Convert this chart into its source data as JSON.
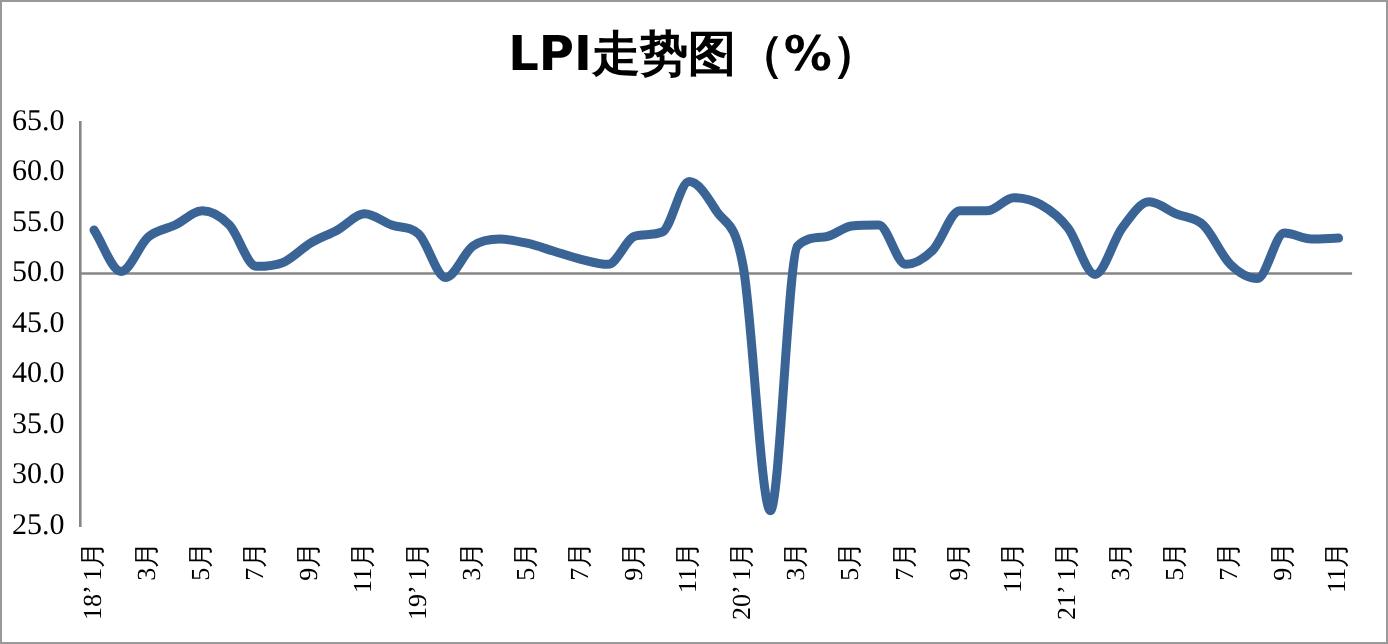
{
  "chart_data": {
    "type": "line",
    "title": "LPI走势图（%）",
    "categories": [
      "18’ 1月",
      null,
      "3月",
      null,
      "5月",
      null,
      "7月",
      null,
      "9月",
      null,
      "11月",
      null,
      "19’ 1月",
      null,
      "3月",
      null,
      "5月",
      null,
      "7月",
      null,
      "9月",
      null,
      "11月",
      null,
      "20’ 1月",
      null,
      "3月",
      null,
      "5月",
      null,
      "7月",
      null,
      "9月",
      null,
      "11月",
      null,
      "21’ 1月",
      null,
      "3月",
      null,
      "5月",
      null,
      "7月",
      null,
      "9月",
      null,
      "11月"
    ],
    "series": [
      {
        "color": "#3a6496",
        "values": [
          54.3,
          50.2,
          53.6,
          54.8,
          56.2,
          54.8,
          50.7,
          51.1,
          53.0,
          54.3,
          55.9,
          54.8,
          53.9,
          49.6,
          52.7,
          53.4,
          53.0,
          52.2,
          51.4,
          50.9,
          53.7,
          54.1,
          59.1,
          56.2,
          50.6,
          26.5,
          52.7,
          53.6,
          54.7,
          54.8,
          50.9,
          52.3,
          56.2,
          56.2,
          57.5,
          56.8,
          54.5,
          49.9,
          54.5,
          57.1,
          55.9,
          54.8,
          50.9,
          49.5,
          54.0,
          53.4,
          53.5
        ]
      }
    ],
    "ylim": [
      25,
      65
    ],
    "yticks": [
      {
        "value": 25,
        "label": "25.0"
      },
      {
        "value": 30,
        "label": "30.0"
      },
      {
        "value": 35,
        "label": "35.0"
      },
      {
        "value": 40,
        "label": "40.0"
      },
      {
        "value": 45,
        "label": "45.0"
      },
      {
        "value": 50,
        "label": "50.0"
      },
      {
        "value": 55,
        "label": "55.0"
      },
      {
        "value": 60,
        "label": "60.0"
      },
      {
        "value": 65,
        "label": "65.0"
      }
    ],
    "ref_lines": [
      {
        "axis": "y",
        "value": 50,
        "color": "#868686"
      }
    ],
    "grid": false,
    "legend": false,
    "marker": "none",
    "line_style": "solid"
  }
}
